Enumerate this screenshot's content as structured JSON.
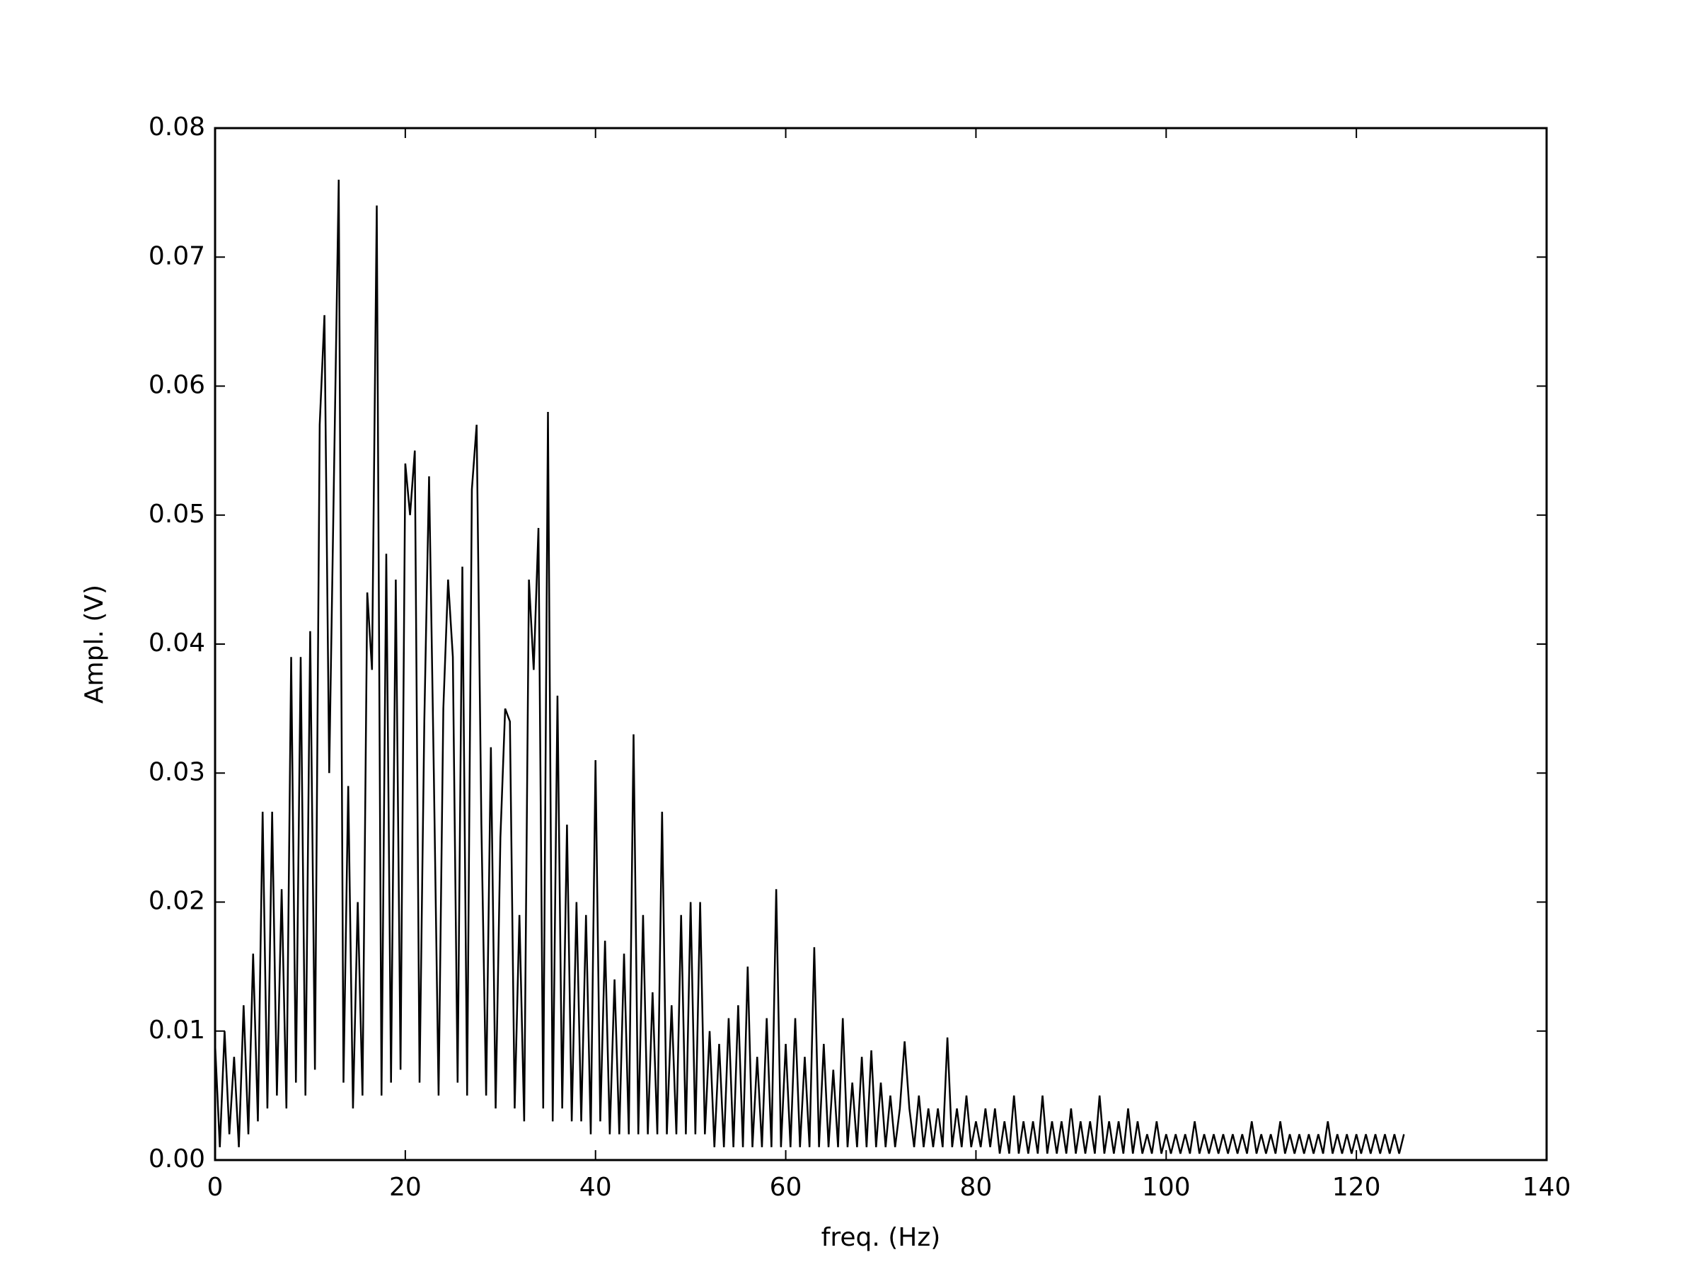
{
  "chart_data": {
    "type": "line",
    "x_label": "freq. (Hz)",
    "y_label": "Ampl. (V)",
    "color": "#000000",
    "xlim": [
      0,
      140
    ],
    "xticks": [
      0,
      20,
      40,
      60,
      80,
      100,
      120,
      140
    ],
    "ylim": [
      0,
      0.08
    ],
    "yticks": [
      {
        "value": 0,
        "label": "0.00"
      },
      {
        "value": 0.01,
        "label": "0.01"
      },
      {
        "value": 0.02,
        "label": "0.02"
      },
      {
        "value": 0.03,
        "label": "0.03"
      },
      {
        "value": 0.04,
        "label": "0.04"
      },
      {
        "value": 0.05,
        "label": "0.05"
      },
      {
        "value": 0.06,
        "label": "0.06"
      },
      {
        "value": 0.07,
        "label": "0.07"
      },
      {
        "value": 0.08,
        "label": "0.08"
      }
    ],
    "x": [
      0,
      0.5,
      1,
      1.5,
      2,
      2.5,
      3,
      3.5,
      4,
      4.5,
      5,
      5.5,
      6,
      6.5,
      7,
      7.5,
      8,
      8.5,
      9,
      9.5,
      10,
      10.5,
      11,
      11.5,
      12,
      12.5,
      13,
      13.5,
      14,
      14.5,
      15,
      15.5,
      16,
      16.5,
      17,
      17.5,
      18,
      18.5,
      19,
      19.5,
      20,
      20.5,
      21,
      21.5,
      22,
      22.5,
      23,
      23.5,
      24,
      24.5,
      25,
      25.5,
      26,
      26.5,
      27,
      27.5,
      28,
      28.5,
      29,
      29.5,
      30,
      30.5,
      31,
      31.5,
      32,
      32.5,
      33,
      33.5,
      34,
      34.5,
      35,
      35.5,
      36,
      36.5,
      37,
      37.5,
      38,
      38.5,
      39,
      39.5,
      40,
      40.5,
      41,
      41.5,
      42,
      42.5,
      43,
      43.5,
      44,
      44.5,
      45,
      45.5,
      46,
      46.5,
      47,
      47.5,
      48,
      48.5,
      49,
      49.5,
      50,
      50.5,
      51,
      51.5,
      52,
      52.5,
      53,
      53.5,
      54,
      54.5,
      55,
      55.5,
      56,
      56.5,
      57,
      57.5,
      58,
      58.5,
      59,
      59.5,
      60,
      60.5,
      61,
      61.5,
      62,
      62.5,
      63,
      63.5,
      64,
      64.5,
      65,
      65.5,
      66,
      66.5,
      67,
      67.5,
      68,
      68.5,
      69,
      69.5,
      70,
      70.5,
      71,
      71.5,
      72,
      72.5,
      73,
      73.5,
      74,
      74.5,
      75,
      75.5,
      76,
      76.5,
      77,
      77.5,
      78,
      78.5,
      79,
      79.5,
      80,
      80.5,
      81,
      81.5,
      82,
      82.5,
      83,
      83.5,
      84,
      84.5,
      85,
      85.5,
      86,
      86.5,
      87,
      87.5,
      88,
      88.5,
      89,
      89.5,
      90,
      90.5,
      91,
      91.5,
      92,
      92.5,
      93,
      93.5,
      94,
      94.5,
      95,
      95.5,
      96,
      96.5,
      97,
      97.5,
      98,
      98.5,
      99,
      99.5,
      100,
      100.5,
      101,
      101.5,
      102,
      102.5,
      103,
      103.5,
      104,
      104.5,
      105,
      105.5,
      106,
      106.5,
      107,
      107.5,
      108,
      108.5,
      109,
      109.5,
      110,
      110.5,
      111,
      111.5,
      112,
      112.5,
      113,
      113.5,
      114,
      114.5,
      115,
      115.5,
      116,
      116.5,
      117,
      117.5,
      118,
      118.5,
      119,
      119.5,
      120,
      120.5,
      121,
      121.5,
      122,
      122.5,
      123,
      123.5,
      124,
      124.5,
      125
    ],
    "values": [
      0.009,
      0.001,
      0.01,
      0.002,
      0.008,
      0.001,
      0.012,
      0.002,
      0.016,
      0.003,
      0.027,
      0.004,
      0.027,
      0.005,
      0.021,
      0.004,
      0.039,
      0.006,
      0.039,
      0.005,
      0.041,
      0.007,
      0.057,
      0.0655,
      0.03,
      0.053,
      0.076,
      0.006,
      0.029,
      0.004,
      0.02,
      0.005,
      0.044,
      0.038,
      0.074,
      0.005,
      0.047,
      0.006,
      0.045,
      0.007,
      0.054,
      0.05,
      0.055,
      0.006,
      0.034,
      0.053,
      0.03,
      0.005,
      0.035,
      0.045,
      0.039,
      0.006,
      0.046,
      0.005,
      0.052,
      0.057,
      0.026,
      0.005,
      0.032,
      0.004,
      0.025,
      0.035,
      0.034,
      0.004,
      0.019,
      0.003,
      0.045,
      0.038,
      0.049,
      0.004,
      0.058,
      0.003,
      0.036,
      0.004,
      0.026,
      0.003,
      0.02,
      0.003,
      0.019,
      0.002,
      0.031,
      0.003,
      0.017,
      0.002,
      0.014,
      0.002,
      0.016,
      0.002,
      0.033,
      0.002,
      0.019,
      0.002,
      0.013,
      0.002,
      0.027,
      0.002,
      0.012,
      0.002,
      0.019,
      0.002,
      0.02,
      0.002,
      0.02,
      0.002,
      0.01,
      0.001,
      0.009,
      0.001,
      0.011,
      0.001,
      0.012,
      0.001,
      0.015,
      0.001,
      0.008,
      0.001,
      0.011,
      0.001,
      0.021,
      0.001,
      0.009,
      0.001,
      0.011,
      0.001,
      0.008,
      0.001,
      0.0165,
      0.001,
      0.009,
      0.001,
      0.007,
      0.001,
      0.011,
      0.001,
      0.006,
      0.001,
      0.008,
      0.001,
      0.0085,
      0.001,
      0.006,
      0.001,
      0.005,
      0.001,
      0.004,
      0.0092,
      0.004,
      0.001,
      0.005,
      0.001,
      0.004,
      0.001,
      0.004,
      0.001,
      0.0095,
      0.001,
      0.004,
      0.001,
      0.005,
      0.001,
      0.003,
      0.001,
      0.004,
      0.001,
      0.004,
      0.0005,
      0.003,
      0.0005,
      0.005,
      0.0005,
      0.003,
      0.0005,
      0.003,
      0.0005,
      0.005,
      0.0005,
      0.003,
      0.0005,
      0.003,
      0.0005,
      0.004,
      0.0005,
      0.003,
      0.0005,
      0.003,
      0.0005,
      0.005,
      0.0005,
      0.003,
      0.0005,
      0.003,
      0.0005,
      0.004,
      0.0005,
      0.003,
      0.0005,
      0.002,
      0.0005,
      0.003,
      0.0005,
      0.002,
      0.0005,
      0.002,
      0.0005,
      0.002,
      0.0005,
      0.003,
      0.0005,
      0.002,
      0.0005,
      0.002,
      0.0005,
      0.002,
      0.0005,
      0.002,
      0.0005,
      0.002,
      0.0005,
      0.003,
      0.0005,
      0.002,
      0.0005,
      0.002,
      0.0005,
      0.003,
      0.0005,
      0.002,
      0.0005,
      0.002,
      0.0005,
      0.002,
      0.0005,
      0.002,
      0.0005,
      0.003,
      0.0005,
      0.002,
      0.0005,
      0.002,
      0.0005,
      0.002,
      0.0005,
      0.002,
      0.0005,
      0.002,
      0.0005,
      0.002,
      0.0005,
      0.002,
      0.0005,
      0.002
    ]
  }
}
